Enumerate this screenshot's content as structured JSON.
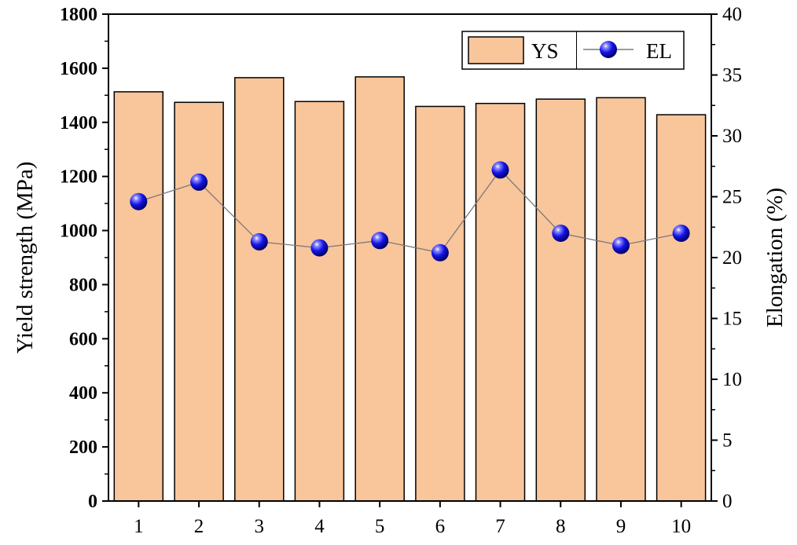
{
  "chart_data": {
    "type": "bar",
    "categories": [
      "1",
      "2",
      "3",
      "4",
      "5",
      "6",
      "7",
      "8",
      "9",
      "10"
    ],
    "series": [
      {
        "name": "YS",
        "type": "bar",
        "axis": "left",
        "values": [
          1513,
          1474,
          1565,
          1477,
          1568,
          1459,
          1470,
          1486,
          1491,
          1428
        ]
      },
      {
        "name": "EL",
        "type": "line",
        "axis": "right",
        "values": [
          24.6,
          26.2,
          21.3,
          20.8,
          21.4,
          20.4,
          27.2,
          22.0,
          21.0,
          22.0
        ]
      }
    ],
    "xlabel": "",
    "ylabel": "Yield strength (MPa)",
    "y2label": "Elongation (%)",
    "ylim": [
      0,
      1800
    ],
    "y2lim": [
      0,
      40
    ],
    "yticks": [
      "0",
      "200",
      "400",
      "600",
      "800",
      "1000",
      "1200",
      "1400",
      "1600",
      "1800"
    ],
    "y2ticks": [
      "0",
      "5",
      "10",
      "15",
      "20",
      "25",
      "30",
      "35",
      "40"
    ],
    "legend": {
      "position": "top-right",
      "entries": [
        "YS",
        "EL"
      ]
    },
    "grid": false,
    "colors": {
      "bar_fill": "#f9c59b",
      "bar_stroke": "#000000",
      "marker": "#1010e0",
      "line": "#7a7a7a"
    }
  }
}
